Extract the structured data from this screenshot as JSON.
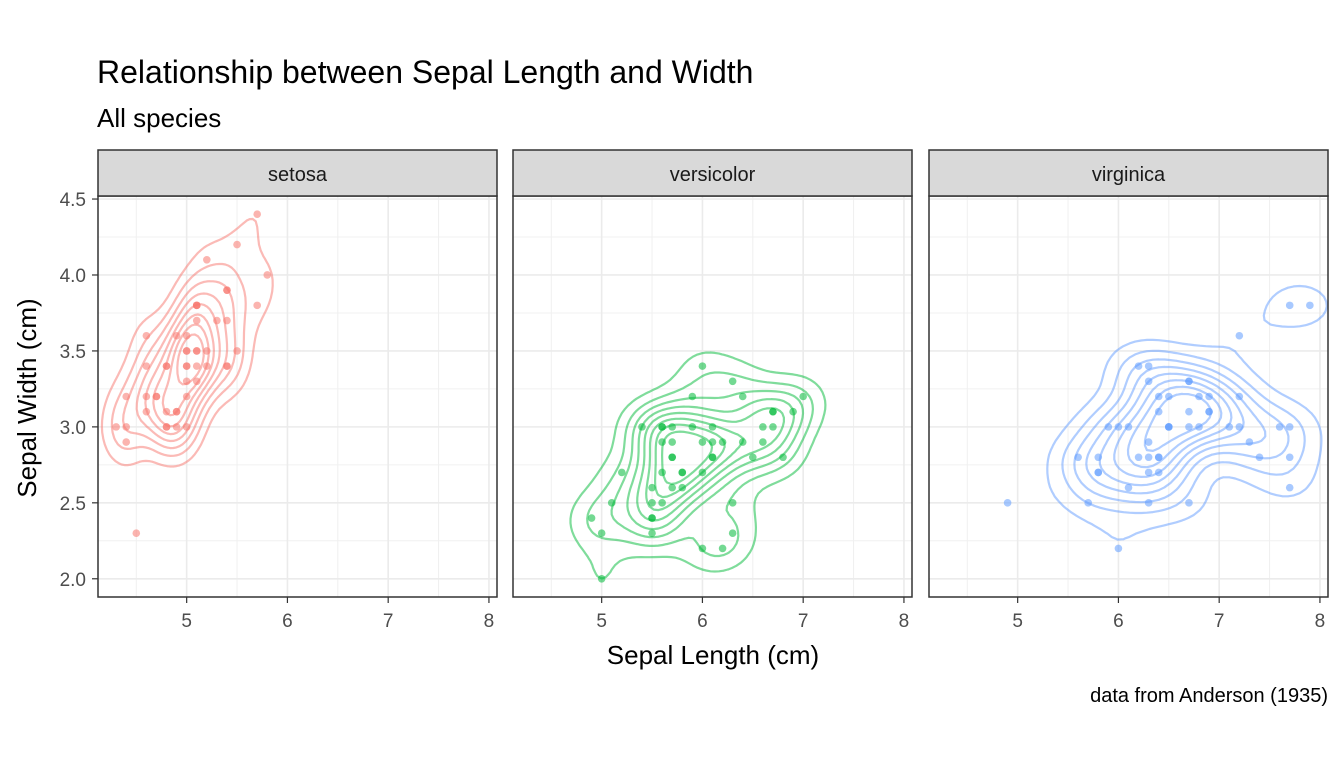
{
  "chart_data": {
    "type": "scatter",
    "title": "Relationship between Sepal Length and Width",
    "subtitle": "All species",
    "xlabel": "Sepal Length (cm)",
    "ylabel": "Sepal Width (cm)",
    "caption": "data from Anderson (1935)",
    "xlim": [
      4.12,
      8.08
    ],
    "ylim": [
      1.88,
      4.52
    ],
    "x_ticks": [
      5,
      6,
      7,
      8
    ],
    "y_ticks": [
      2.0,
      2.5,
      3.0,
      3.5,
      4.0,
      4.5
    ],
    "y_tick_labels": [
      "2.0",
      "2.5",
      "3.0",
      "3.5",
      "4.0",
      "4.5"
    ],
    "grid": true,
    "overlay": "2d density contours",
    "panels": [
      {
        "label": "setosa",
        "color": "#F8766D",
        "points": [
          [
            5.1,
            3.5
          ],
          [
            4.9,
            3.0
          ],
          [
            4.7,
            3.2
          ],
          [
            4.6,
            3.1
          ],
          [
            5.0,
            3.6
          ],
          [
            5.4,
            3.9
          ],
          [
            4.6,
            3.4
          ],
          [
            5.0,
            3.4
          ],
          [
            4.4,
            2.9
          ],
          [
            4.9,
            3.1
          ],
          [
            5.4,
            3.7
          ],
          [
            4.8,
            3.4
          ],
          [
            4.8,
            3.0
          ],
          [
            4.3,
            3.0
          ],
          [
            5.8,
            4.0
          ],
          [
            5.7,
            4.4
          ],
          [
            5.4,
            3.9
          ],
          [
            5.1,
            3.5
          ],
          [
            5.7,
            3.8
          ],
          [
            5.1,
            3.8
          ],
          [
            5.4,
            3.4
          ],
          [
            5.1,
            3.7
          ],
          [
            4.6,
            3.6
          ],
          [
            5.1,
            3.3
          ],
          [
            4.8,
            3.4
          ],
          [
            5.0,
            3.0
          ],
          [
            5.0,
            3.4
          ],
          [
            5.2,
            3.5
          ],
          [
            5.2,
            3.4
          ],
          [
            4.7,
            3.2
          ],
          [
            4.8,
            3.1
          ],
          [
            5.4,
            3.4
          ],
          [
            5.2,
            4.1
          ],
          [
            5.5,
            4.2
          ],
          [
            4.9,
            3.1
          ],
          [
            5.0,
            3.2
          ],
          [
            5.5,
            3.5
          ],
          [
            4.9,
            3.6
          ],
          [
            4.4,
            3.0
          ],
          [
            5.1,
            3.4
          ],
          [
            5.0,
            3.5
          ],
          [
            4.5,
            2.3
          ],
          [
            4.4,
            3.2
          ],
          [
            5.0,
            3.5
          ],
          [
            5.1,
            3.8
          ],
          [
            4.8,
            3.0
          ],
          [
            5.1,
            3.8
          ],
          [
            4.6,
            3.2
          ],
          [
            5.3,
            3.7
          ],
          [
            5.0,
            3.3
          ]
        ]
      },
      {
        "label": "versicolor",
        "color": "#00BA38",
        "points": [
          [
            7.0,
            3.2
          ],
          [
            6.4,
            3.2
          ],
          [
            6.9,
            3.1
          ],
          [
            5.5,
            2.3
          ],
          [
            6.5,
            2.8
          ],
          [
            5.7,
            2.8
          ],
          [
            6.3,
            3.3
          ],
          [
            4.9,
            2.4
          ],
          [
            6.6,
            2.9
          ],
          [
            5.2,
            2.7
          ],
          [
            5.0,
            2.0
          ],
          [
            5.9,
            3.0
          ],
          [
            6.0,
            2.2
          ],
          [
            6.1,
            2.9
          ],
          [
            5.6,
            2.9
          ],
          [
            6.7,
            3.1
          ],
          [
            5.6,
            3.0
          ],
          [
            5.8,
            2.7
          ],
          [
            6.2,
            2.2
          ],
          [
            5.6,
            2.5
          ],
          [
            5.9,
            3.2
          ],
          [
            6.1,
            2.8
          ],
          [
            6.3,
            2.5
          ],
          [
            6.1,
            2.8
          ],
          [
            6.4,
            2.9
          ],
          [
            6.6,
            3.0
          ],
          [
            6.8,
            2.8
          ],
          [
            6.7,
            3.0
          ],
          [
            6.0,
            2.9
          ],
          [
            5.7,
            2.6
          ],
          [
            5.5,
            2.4
          ],
          [
            5.5,
            2.4
          ],
          [
            5.8,
            2.7
          ],
          [
            6.0,
            2.7
          ],
          [
            5.4,
            3.0
          ],
          [
            6.0,
            3.4
          ],
          [
            6.7,
            3.1
          ],
          [
            6.3,
            2.3
          ],
          [
            5.6,
            3.0
          ],
          [
            5.5,
            2.5
          ],
          [
            5.5,
            2.6
          ],
          [
            6.1,
            3.0
          ],
          [
            5.8,
            2.6
          ],
          [
            5.0,
            2.3
          ],
          [
            5.6,
            2.7
          ],
          [
            5.7,
            3.0
          ],
          [
            5.7,
            2.9
          ],
          [
            6.2,
            2.9
          ],
          [
            5.1,
            2.5
          ],
          [
            5.7,
            2.8
          ]
        ]
      },
      {
        "label": "virginica",
        "color": "#619CFF",
        "points": [
          [
            6.3,
            3.3
          ],
          [
            5.8,
            2.7
          ],
          [
            7.1,
            3.0
          ],
          [
            6.3,
            2.9
          ],
          [
            6.5,
            3.0
          ],
          [
            7.6,
            3.0
          ],
          [
            4.9,
            2.5
          ],
          [
            7.3,
            2.9
          ],
          [
            6.7,
            2.5
          ],
          [
            7.2,
            3.6
          ],
          [
            6.5,
            3.2
          ],
          [
            6.4,
            2.7
          ],
          [
            6.8,
            3.0
          ],
          [
            5.7,
            2.5
          ],
          [
            5.8,
            2.8
          ],
          [
            6.4,
            3.2
          ],
          [
            6.5,
            3.0
          ],
          [
            7.7,
            3.8
          ],
          [
            7.7,
            2.6
          ],
          [
            6.0,
            2.2
          ],
          [
            6.9,
            3.2
          ],
          [
            5.6,
            2.8
          ],
          [
            7.7,
            2.8
          ],
          [
            6.3,
            2.7
          ],
          [
            6.7,
            3.3
          ],
          [
            7.2,
            3.2
          ],
          [
            6.2,
            2.8
          ],
          [
            6.1,
            3.0
          ],
          [
            6.4,
            2.8
          ],
          [
            7.2,
            3.0
          ],
          [
            7.4,
            2.8
          ],
          [
            7.9,
            3.8
          ],
          [
            6.4,
            2.8
          ],
          [
            6.3,
            2.8
          ],
          [
            6.1,
            2.6
          ],
          [
            7.7,
            3.0
          ],
          [
            6.3,
            3.4
          ],
          [
            6.4,
            3.1
          ],
          [
            6.0,
            3.0
          ],
          [
            6.9,
            3.1
          ],
          [
            6.7,
            3.1
          ],
          [
            6.9,
            3.1
          ],
          [
            5.8,
            2.7
          ],
          [
            6.8,
            3.2
          ],
          [
            6.7,
            3.3
          ],
          [
            6.7,
            3.0
          ],
          [
            6.3,
            2.5
          ],
          [
            6.5,
            3.0
          ],
          [
            6.2,
            3.4
          ],
          [
            5.9,
            3.0
          ]
        ]
      }
    ]
  }
}
